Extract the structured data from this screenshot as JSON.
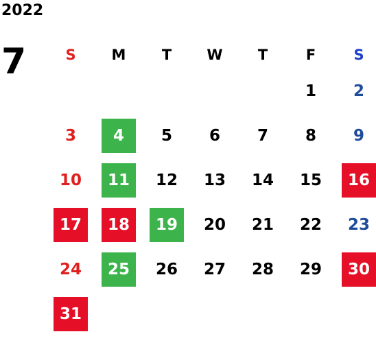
{
  "calendar": {
    "year": "2022",
    "month": "7",
    "weekdays": [
      {
        "label": "S",
        "color": "#e02020"
      },
      {
        "label": "M",
        "color": "#000000"
      },
      {
        "label": "T",
        "color": "#000000"
      },
      {
        "label": "W",
        "color": "#000000"
      },
      {
        "label": "T",
        "color": "#000000"
      },
      {
        "label": "F",
        "color": "#000000"
      },
      {
        "label": "S",
        "color": "#1e3ecc"
      }
    ],
    "first_weekday_index": 5,
    "days": [
      {
        "day": "1",
        "mark": "none"
      },
      {
        "day": "2",
        "mark": "saturday"
      },
      {
        "day": "3",
        "mark": "sunday"
      },
      {
        "day": "4",
        "mark": "green"
      },
      {
        "day": "5",
        "mark": "none"
      },
      {
        "day": "6",
        "mark": "none"
      },
      {
        "day": "7",
        "mark": "none"
      },
      {
        "day": "8",
        "mark": "none"
      },
      {
        "day": "9",
        "mark": "saturday"
      },
      {
        "day": "10",
        "mark": "sunday"
      },
      {
        "day": "11",
        "mark": "green"
      },
      {
        "day": "12",
        "mark": "none"
      },
      {
        "day": "13",
        "mark": "none"
      },
      {
        "day": "14",
        "mark": "none"
      },
      {
        "day": "15",
        "mark": "none"
      },
      {
        "day": "16",
        "mark": "red"
      },
      {
        "day": "17",
        "mark": "red"
      },
      {
        "day": "18",
        "mark": "red"
      },
      {
        "day": "19",
        "mark": "green"
      },
      {
        "day": "20",
        "mark": "none"
      },
      {
        "day": "21",
        "mark": "none"
      },
      {
        "day": "22",
        "mark": "none"
      },
      {
        "day": "23",
        "mark": "saturday"
      },
      {
        "day": "24",
        "mark": "sunday"
      },
      {
        "day": "25",
        "mark": "green"
      },
      {
        "day": "26",
        "mark": "none"
      },
      {
        "day": "27",
        "mark": "none"
      },
      {
        "day": "28",
        "mark": "none"
      },
      {
        "day": "29",
        "mark": "none"
      },
      {
        "day": "30",
        "mark": "red"
      },
      {
        "day": "31",
        "mark": "red"
      }
    ]
  },
  "colors": {
    "green_highlight": "#3cb44b",
    "red_highlight": "#e60f28",
    "sunday_text": "#e02020",
    "saturday_text": "#1e4b9b"
  }
}
